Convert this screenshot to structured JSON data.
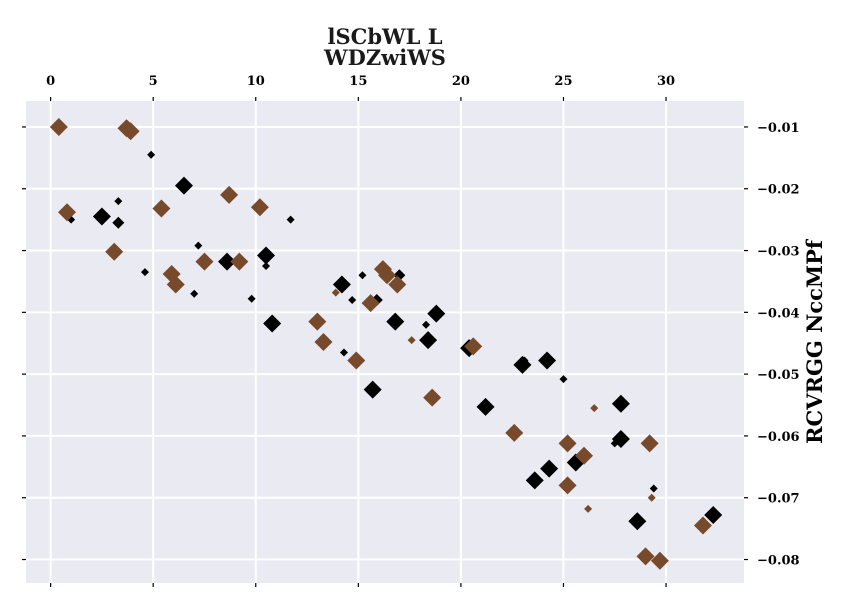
{
  "chart_data": {
    "type": "scatter",
    "title_lines": [
      "lSCbWL L",
      "WDZwiWS"
    ],
    "xlabel": "",
    "ylabel": "RCVRGG NccMPf",
    "xlim": [
      -1.2,
      33.8
    ],
    "ylim": [
      -0.0838,
      -0.0058
    ],
    "x_ticks": [
      0,
      5,
      10,
      15,
      20,
      25,
      30
    ],
    "y_ticks": [
      -0.08,
      -0.07,
      -0.06,
      -0.05,
      -0.04,
      -0.03,
      -0.02,
      -0.01
    ],
    "x_axis_position": "top",
    "y_axis_position": "right",
    "grid": true,
    "marker": "diamond",
    "series": [
      {
        "color": "#000000",
        "points": [
          {
            "x": 1.0,
            "y": -0.025,
            "s": "s"
          },
          {
            "x": 2.5,
            "y": -0.0245,
            "s": "l"
          },
          {
            "x": 3.3,
            "y": -0.022,
            "s": "s"
          },
          {
            "x": 3.3,
            "y": -0.0255,
            "s": "m"
          },
          {
            "x": 4.6,
            "y": -0.0335,
            "s": "s"
          },
          {
            "x": 4.9,
            "y": -0.0145,
            "s": "s"
          },
          {
            "x": 6.5,
            "y": -0.0195,
            "s": "l"
          },
          {
            "x": 7.0,
            "y": -0.037,
            "s": "s"
          },
          {
            "x": 7.2,
            "y": -0.0292,
            "s": "s"
          },
          {
            "x": 8.6,
            "y": -0.0318,
            "s": "l"
          },
          {
            "x": 9.8,
            "y": -0.0378,
            "s": "s"
          },
          {
            "x": 10.5,
            "y": -0.0308,
            "s": "l"
          },
          {
            "x": 10.5,
            "y": -0.0325,
            "s": "s"
          },
          {
            "x": 10.8,
            "y": -0.0418,
            "s": "l"
          },
          {
            "x": 11.7,
            "y": -0.025,
            "s": "s"
          },
          {
            "x": 14.2,
            "y": -0.0355,
            "s": "l"
          },
          {
            "x": 14.3,
            "y": -0.0465,
            "s": "s"
          },
          {
            "x": 14.7,
            "y": -0.038,
            "s": "s"
          },
          {
            "x": 15.2,
            "y": -0.034,
            "s": "s"
          },
          {
            "x": 15.7,
            "y": -0.0525,
            "s": "l"
          },
          {
            "x": 15.9,
            "y": -0.038,
            "s": "m"
          },
          {
            "x": 16.8,
            "y": -0.0415,
            "s": "l"
          },
          {
            "x": 17.0,
            "y": -0.034,
            "s": "m"
          },
          {
            "x": 18.3,
            "y": -0.042,
            "s": "s"
          },
          {
            "x": 18.4,
            "y": -0.0445,
            "s": "l"
          },
          {
            "x": 18.8,
            "y": -0.0402,
            "s": "l"
          },
          {
            "x": 20.4,
            "y": -0.0458,
            "s": "l"
          },
          {
            "x": 21.2,
            "y": -0.0553,
            "s": "l"
          },
          {
            "x": 23.0,
            "y": -0.0485,
            "s": "l"
          },
          {
            "x": 23.1,
            "y": -0.0478,
            "s": "s"
          },
          {
            "x": 23.6,
            "y": -0.0672,
            "s": "l"
          },
          {
            "x": 24.2,
            "y": -0.0478,
            "s": "l"
          },
          {
            "x": 24.3,
            "y": -0.0653,
            "s": "l"
          },
          {
            "x": 25.0,
            "y": -0.0508,
            "s": "s"
          },
          {
            "x": 25.6,
            "y": -0.0643,
            "s": "l"
          },
          {
            "x": 27.5,
            "y": -0.0612,
            "s": "s"
          },
          {
            "x": 27.8,
            "y": -0.0548,
            "s": "l"
          },
          {
            "x": 27.8,
            "y": -0.0605,
            "s": "l"
          },
          {
            "x": 28.6,
            "y": -0.0738,
            "s": "l"
          },
          {
            "x": 29.4,
            "y": -0.0685,
            "s": "s"
          },
          {
            "x": 32.3,
            "y": -0.0728,
            "s": "l"
          }
        ]
      },
      {
        "color": "#774a2c",
        "points": [
          {
            "x": 0.4,
            "y": -0.01,
            "s": "l"
          },
          {
            "x": 0.8,
            "y": -0.0238,
            "s": "l"
          },
          {
            "x": 3.1,
            "y": -0.0302,
            "s": "l"
          },
          {
            "x": 3.7,
            "y": -0.0102,
            "s": "l"
          },
          {
            "x": 3.9,
            "y": -0.0107,
            "s": "l"
          },
          {
            "x": 5.4,
            "y": -0.0232,
            "s": "l"
          },
          {
            "x": 5.9,
            "y": -0.0338,
            "s": "l"
          },
          {
            "x": 6.1,
            "y": -0.0355,
            "s": "l"
          },
          {
            "x": 7.5,
            "y": -0.0318,
            "s": "l"
          },
          {
            "x": 8.7,
            "y": -0.021,
            "s": "l"
          },
          {
            "x": 9.2,
            "y": -0.0318,
            "s": "l"
          },
          {
            "x": 10.2,
            "y": -0.023,
            "s": "l"
          },
          {
            "x": 13.0,
            "y": -0.0415,
            "s": "l"
          },
          {
            "x": 13.3,
            "y": -0.0448,
            "s": "l"
          },
          {
            "x": 13.9,
            "y": -0.0368,
            "s": "s"
          },
          {
            "x": 14.9,
            "y": -0.0478,
            "s": "l"
          },
          {
            "x": 15.6,
            "y": -0.0385,
            "s": "l"
          },
          {
            "x": 16.2,
            "y": -0.033,
            "s": "l"
          },
          {
            "x": 16.4,
            "y": -0.034,
            "s": "l"
          },
          {
            "x": 16.9,
            "y": -0.0355,
            "s": "l"
          },
          {
            "x": 17.6,
            "y": -0.0445,
            "s": "s"
          },
          {
            "x": 18.6,
            "y": -0.0538,
            "s": "l"
          },
          {
            "x": 20.6,
            "y": -0.0455,
            "s": "l"
          },
          {
            "x": 22.6,
            "y": -0.0595,
            "s": "l"
          },
          {
            "x": 25.2,
            "y": -0.0612,
            "s": "l"
          },
          {
            "x": 25.2,
            "y": -0.068,
            "s": "l"
          },
          {
            "x": 26.0,
            "y": -0.0632,
            "s": "l"
          },
          {
            "x": 26.2,
            "y": -0.0718,
            "s": "s"
          },
          {
            "x": 26.5,
            "y": -0.0555,
            "s": "s"
          },
          {
            "x": 29.0,
            "y": -0.0795,
            "s": "l"
          },
          {
            "x": 29.2,
            "y": -0.0612,
            "s": "l"
          },
          {
            "x": 29.3,
            "y": -0.07,
            "s": "s"
          },
          {
            "x": 29.7,
            "y": -0.0802,
            "s": "l"
          },
          {
            "x": 31.8,
            "y": -0.0745,
            "s": "l"
          }
        ]
      }
    ]
  }
}
